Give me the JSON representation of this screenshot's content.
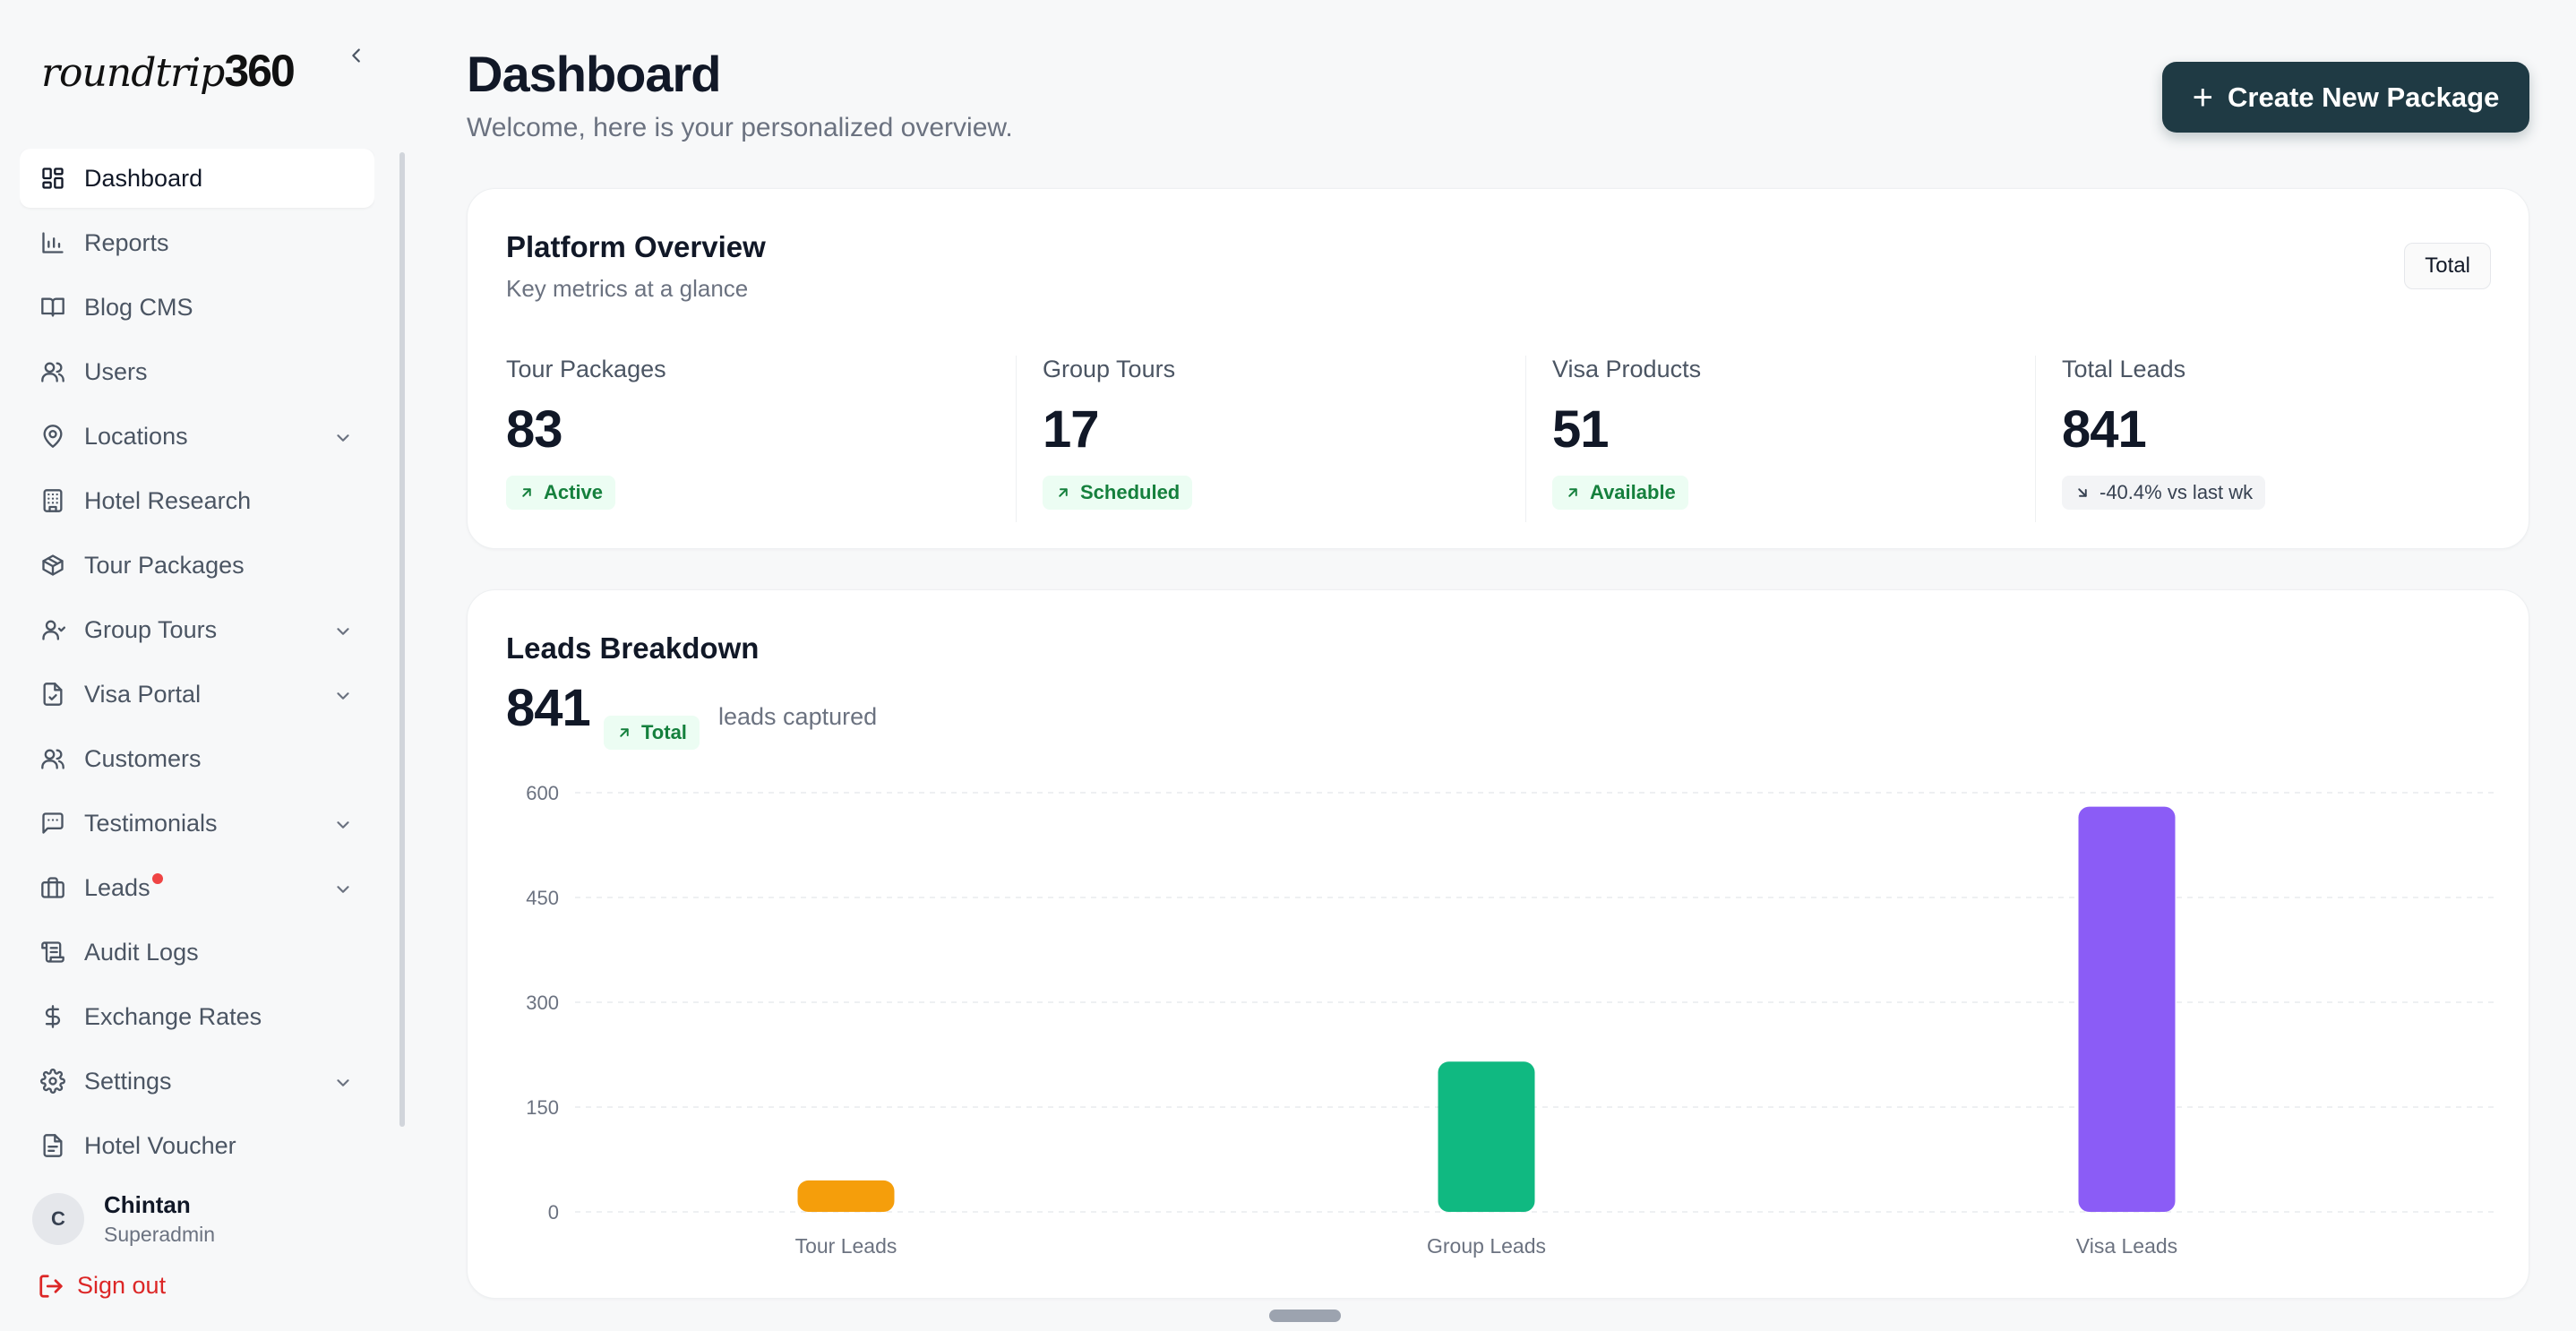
{
  "brand": {
    "logo_script": "roundtrip",
    "logo_num": "360"
  },
  "sidebar": {
    "items": [
      {
        "label": "Dashboard",
        "icon": "dashboard-icon",
        "active": true
      },
      {
        "label": "Reports",
        "icon": "bar-chart-icon"
      },
      {
        "label": "Blog CMS",
        "icon": "book-icon"
      },
      {
        "label": "Users",
        "icon": "users-icon"
      },
      {
        "label": "Locations",
        "icon": "map-pin-icon",
        "has_submenu": true
      },
      {
        "label": "Hotel Research",
        "icon": "building-icon"
      },
      {
        "label": "Tour Packages",
        "icon": "package-icon"
      },
      {
        "label": "Group Tours",
        "icon": "users-icon",
        "has_submenu": true
      },
      {
        "label": "Visa Portal",
        "icon": "file-check-icon",
        "has_submenu": true
      },
      {
        "label": "Customers",
        "icon": "users-icon"
      },
      {
        "label": "Testimonials",
        "icon": "message-icon",
        "has_submenu": true
      },
      {
        "label": "Leads",
        "icon": "briefcase-icon",
        "has_submenu": true,
        "notification_dot": true
      },
      {
        "label": "Audit Logs",
        "icon": "scroll-icon"
      },
      {
        "label": "Exchange Rates",
        "icon": "dollar-icon"
      },
      {
        "label": "Settings",
        "icon": "gear-icon",
        "has_submenu": true
      },
      {
        "label": "Hotel Voucher",
        "icon": "file-icon"
      }
    ],
    "user": {
      "initial": "C",
      "name": "Chintan",
      "role": "Superadmin"
    },
    "sign_out": "Sign out"
  },
  "header": {
    "title": "Dashboard",
    "subtitle": "Welcome, here is your personalized overview.",
    "create_button": "Create New Package"
  },
  "overview": {
    "title": "Platform Overview",
    "subtitle": "Key metrics at a glance",
    "chip": "Total",
    "metrics": [
      {
        "label": "Tour Packages",
        "value": "83",
        "badge": "Active",
        "trend": "up"
      },
      {
        "label": "Group Tours",
        "value": "17",
        "badge": "Scheduled",
        "trend": "up"
      },
      {
        "label": "Visa Products",
        "value": "51",
        "badge": "Available",
        "trend": "up"
      },
      {
        "label": "Total Leads",
        "value": "841",
        "badge": "-40.4% vs last wk",
        "trend": "down"
      }
    ]
  },
  "leads": {
    "title": "Leads Breakdown",
    "total": "841",
    "badge": "Total",
    "note": "leads captured"
  },
  "colors": {
    "accent": "#1f3a44",
    "tour": "#f59e0b",
    "group": "#10b981",
    "visa": "#8b5cf6",
    "danger": "#ef4444"
  },
  "chart_data": {
    "type": "bar",
    "categories": [
      "Tour Leads",
      "Group Leads",
      "Visa Leads"
    ],
    "values": [
      45,
      215,
      580
    ],
    "colors": [
      "#f59e0b",
      "#10b981",
      "#8b5cf6"
    ],
    "ylim": [
      0,
      600
    ],
    "yticks": [
      0,
      150,
      300,
      450,
      600
    ],
    "grid": true
  }
}
